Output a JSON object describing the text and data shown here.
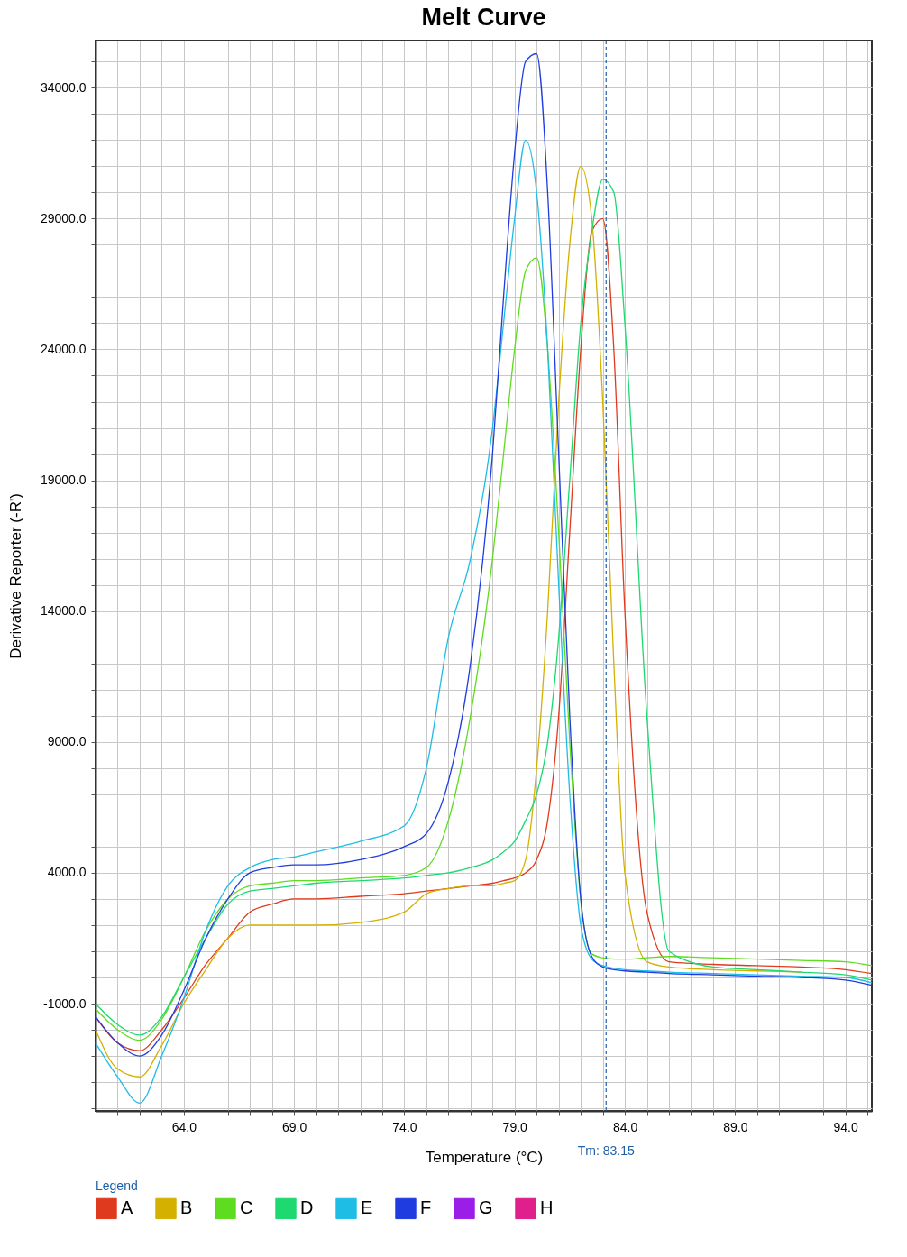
{
  "chart_data": {
    "type": "line",
    "title": "Melt Curve",
    "xlabel": "Temperature (°C)",
    "ylabel": "Derivative Reporter (-R')",
    "legend_title": "Legend",
    "legend": "bottom",
    "grid": true,
    "line_style": "solid",
    "marker": "none",
    "xlim": [
      60,
      95.2
    ],
    "ylim": [
      -5100,
      35800
    ],
    "xticks": [
      {
        "value": 61,
        "label": null
      },
      {
        "value": 62,
        "label": null
      },
      {
        "value": 63,
        "label": null
      },
      {
        "value": 64,
        "label": "64.0"
      },
      {
        "value": 65,
        "label": null
      },
      {
        "value": 66,
        "label": null
      },
      {
        "value": 67,
        "label": null
      },
      {
        "value": 68,
        "label": null
      },
      {
        "value": 69,
        "label": "69.0"
      },
      {
        "value": 70,
        "label": null
      },
      {
        "value": 71,
        "label": null
      },
      {
        "value": 72,
        "label": null
      },
      {
        "value": 73,
        "label": null
      },
      {
        "value": 74,
        "label": "74.0"
      },
      {
        "value": 75,
        "label": null
      },
      {
        "value": 76,
        "label": null
      },
      {
        "value": 77,
        "label": null
      },
      {
        "value": 78,
        "label": null
      },
      {
        "value": 79,
        "label": "79.0"
      },
      {
        "value": 80,
        "label": null
      },
      {
        "value": 81,
        "label": null
      },
      {
        "value": 82,
        "label": null
      },
      {
        "value": 83,
        "label": null
      },
      {
        "value": 84,
        "label": "84.0"
      },
      {
        "value": 85,
        "label": null
      },
      {
        "value": 86,
        "label": null
      },
      {
        "value": 87,
        "label": null
      },
      {
        "value": 88,
        "label": null
      },
      {
        "value": 89,
        "label": "89.0"
      },
      {
        "value": 90,
        "label": null
      },
      {
        "value": 91,
        "label": null
      },
      {
        "value": 92,
        "label": null
      },
      {
        "value": 93,
        "label": null
      },
      {
        "value": 94,
        "label": "94.0"
      },
      {
        "value": 95,
        "label": null
      }
    ],
    "yticks": [
      {
        "value": -5000,
        "label": null
      },
      {
        "value": -4000,
        "label": null
      },
      {
        "value": -3000,
        "label": null
      },
      {
        "value": -2000,
        "label": null
      },
      {
        "value": -1000,
        "label": "-1000.0"
      },
      {
        "value": 0,
        "label": null
      },
      {
        "value": 1000,
        "label": null
      },
      {
        "value": 2000,
        "label": null
      },
      {
        "value": 3000,
        "label": null
      },
      {
        "value": 4000,
        "label": "4000.0"
      },
      {
        "value": 5000,
        "label": null
      },
      {
        "value": 6000,
        "label": null
      },
      {
        "value": 7000,
        "label": null
      },
      {
        "value": 8000,
        "label": null
      },
      {
        "value": 9000,
        "label": "9000.0"
      },
      {
        "value": 10000,
        "label": null
      },
      {
        "value": 11000,
        "label": null
      },
      {
        "value": 12000,
        "label": null
      },
      {
        "value": 13000,
        "label": null
      },
      {
        "value": 14000,
        "label": "14000.0"
      },
      {
        "value": 15000,
        "label": null
      },
      {
        "value": 16000,
        "label": null
      },
      {
        "value": 17000,
        "label": null
      },
      {
        "value": 18000,
        "label": null
      },
      {
        "value": 19000,
        "label": "19000.0"
      },
      {
        "value": 20000,
        "label": null
      },
      {
        "value": 21000,
        "label": null
      },
      {
        "value": 22000,
        "label": null
      },
      {
        "value": 23000,
        "label": null
      },
      {
        "value": 24000,
        "label": "24000.0"
      },
      {
        "value": 25000,
        "label": null
      },
      {
        "value": 26000,
        "label": null
      },
      {
        "value": 27000,
        "label": null
      },
      {
        "value": 28000,
        "label": null
      },
      {
        "value": 29000,
        "label": "29000.0"
      },
      {
        "value": 30000,
        "label": null
      },
      {
        "value": 31000,
        "label": null
      },
      {
        "value": 32000,
        "label": null
      },
      {
        "value": 33000,
        "label": null
      },
      {
        "value": 34000,
        "label": "34000.0"
      },
      {
        "value": 35000,
        "label": null
      }
    ],
    "x": [
      60,
      61,
      62,
      63,
      64,
      65,
      66,
      67,
      68,
      69,
      70,
      72,
      74,
      75,
      76,
      77,
      78,
      78.5,
      79,
      79.5,
      80,
      80.5,
      81,
      81.5,
      82,
      82.5,
      83,
      83.5,
      84,
      85,
      86,
      88,
      90,
      92,
      94,
      95.2
    ],
    "series": [
      {
        "name": "A",
        "color": "#e03a1e",
        "values": [
          -1500,
          -2500,
          -2800,
          -2000,
          -800,
          500,
          1500,
          2500,
          2800,
          3000,
          3000,
          3100,
          3200,
          3300,
          3400,
          3500,
          3600,
          3700,
          3800,
          4000,
          4500,
          6000,
          10000,
          17000,
          24000,
          28500,
          29000,
          24000,
          14000,
          2500,
          600,
          500,
          450,
          400,
          300,
          150
        ]
      },
      {
        "name": "B",
        "color": "#d4b000",
        "values": [
          -2000,
          -3500,
          -3800,
          -2600,
          -1000,
          300,
          1500,
          2000,
          2000,
          2000,
          2000,
          2100,
          2500,
          3200,
          3400,
          3500,
          3500,
          3600,
          3700,
          4500,
          8000,
          14000,
          22000,
          28000,
          31000,
          29000,
          22000,
          12000,
          4000,
          600,
          400,
          300,
          250,
          200,
          null,
          null
        ]
      },
      {
        "name": "C",
        "color": "#5edc1e",
        "values": [
          -1200,
          -2000,
          -2400,
          -1600,
          0,
          1800,
          3000,
          3500,
          3600,
          3700,
          3700,
          3800,
          3900,
          4200,
          6000,
          10000,
          16000,
          20000,
          24000,
          27000,
          27500,
          24000,
          17000,
          9000,
          3000,
          900,
          750,
          700,
          700,
          750,
          800,
          750,
          700,
          650,
          600,
          450
        ]
      },
      {
        "name": "D",
        "color": "#1ed870",
        "values": [
          -1000,
          -1800,
          -2200,
          -1500,
          0,
          1500,
          2800,
          3300,
          3400,
          3500,
          3600,
          3700,
          3800,
          3900,
          4000,
          4200,
          4500,
          4800,
          5200,
          6000,
          7000,
          9000,
          13000,
          19000,
          25000,
          28500,
          30500,
          30000,
          25000,
          10000,
          1000,
          400,
          300,
          200,
          100,
          -100
        ]
      },
      {
        "name": "E",
        "color": "#1ebde6",
        "values": [
          -2500,
          -3800,
          -4800,
          -3000,
          -800,
          1800,
          3500,
          4200,
          4500,
          4600,
          4800,
          5200,
          5800,
          8000,
          13000,
          16000,
          21000,
          25000,
          29000,
          32000,
          30000,
          24000,
          15000,
          7000,
          2000,
          700,
          450,
          350,
          300,
          250,
          200,
          150,
          100,
          50,
          0,
          -200
        ]
      },
      {
        "name": "F",
        "color": "#1e3ce0",
        "values": [
          -1500,
          -2500,
          -3000,
          -2200,
          -500,
          1500,
          3000,
          4000,
          4200,
          4300,
          4300,
          4500,
          5000,
          5500,
          7500,
          12000,
          20000,
          26000,
          31500,
          35000,
          35300,
          30000,
          20000,
          10000,
          3000,
          800,
          400,
          300,
          250,
          200,
          150,
          100,
          50,
          0,
          -100,
          -300
        ]
      },
      {
        "name": "G",
        "color": "#9a1ee8",
        "values": [
          null,
          null,
          null,
          null,
          null,
          null,
          null,
          null,
          null,
          null,
          null,
          null,
          null,
          null,
          null,
          null,
          null,
          null,
          null,
          null,
          null,
          null,
          null,
          null,
          null,
          null,
          null,
          null,
          null,
          null,
          null,
          null,
          null,
          null,
          null,
          null
        ]
      },
      {
        "name": "H",
        "color": "#e01e8c",
        "values": [
          null,
          null,
          null,
          null,
          null,
          null,
          null,
          null,
          null,
          null,
          null,
          null,
          null,
          null,
          null,
          null,
          null,
          null,
          null,
          null,
          null,
          null,
          null,
          null,
          null,
          null,
          null,
          null,
          null,
          null,
          null,
          null,
          null,
          null,
          null,
          null
        ]
      }
    ],
    "ref_lines": [
      {
        "axis": "x",
        "value": 83.15,
        "label": "Tm: 83.15",
        "color": "#1f5fa8",
        "line_style": "dashed"
      }
    ]
  }
}
